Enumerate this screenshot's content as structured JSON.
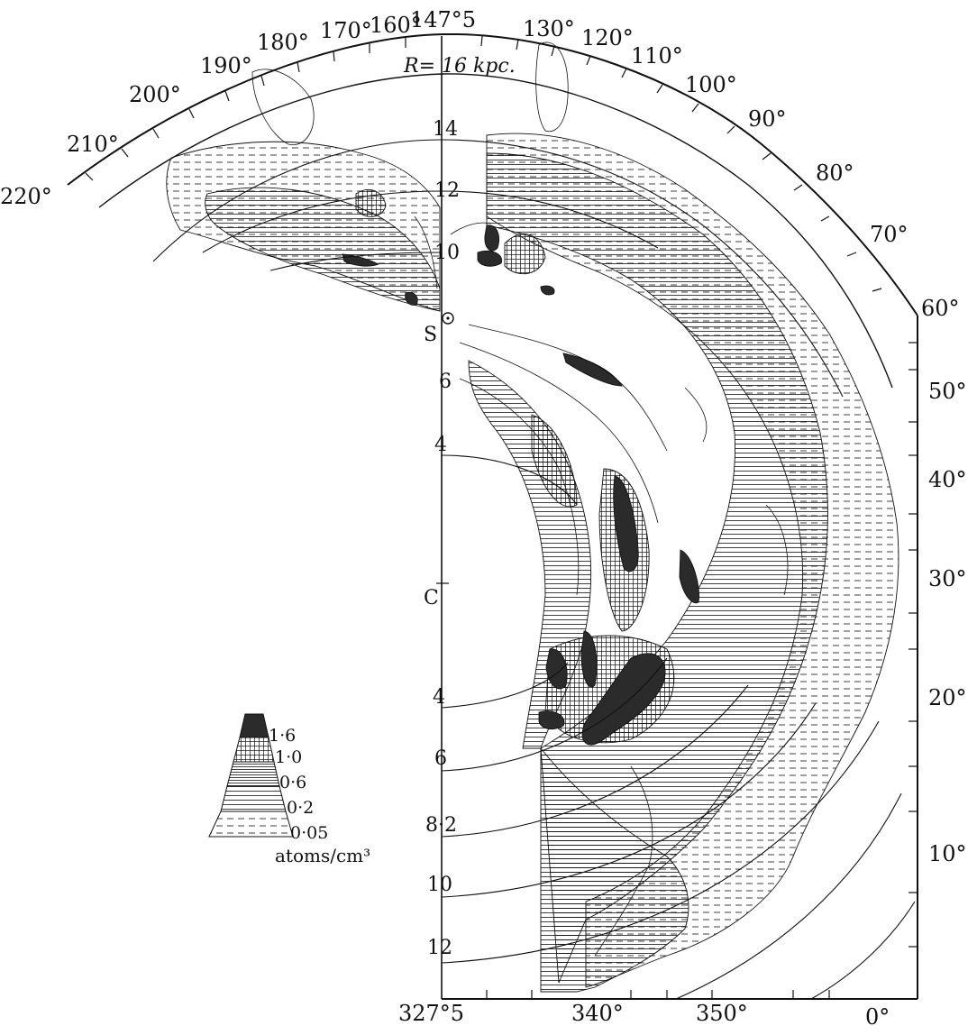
{
  "colors": {
    "ink": "#111111",
    "paper": "#ffffff",
    "shade_dense": "#2b2b2b"
  },
  "labels": {
    "radius_title": "R= 16 kpc.",
    "sun": "S",
    "center": "C",
    "upper_radii": [
      "14",
      "12",
      "10",
      "6",
      "4"
    ],
    "lower_radii": [
      "4",
      "6",
      "8·2",
      "10",
      "12"
    ],
    "top_scale": [
      "220°",
      "210°",
      "200°",
      "190°",
      "180°",
      "170°",
      "160°",
      "147°5",
      "130°",
      "120°",
      "110°",
      "100°",
      "90°",
      "80°",
      "70°",
      "60°"
    ],
    "right_scale": [
      "50°",
      "40°",
      "30°",
      "20°",
      "10°"
    ],
    "bottom_scale": [
      "327°5",
      "340°",
      "350°",
      "0°"
    ]
  },
  "legend": {
    "levels": [
      "1·6",
      "1·0",
      "0·6",
      "0·2",
      "0·05"
    ],
    "unit": "atoms/cm³"
  }
}
